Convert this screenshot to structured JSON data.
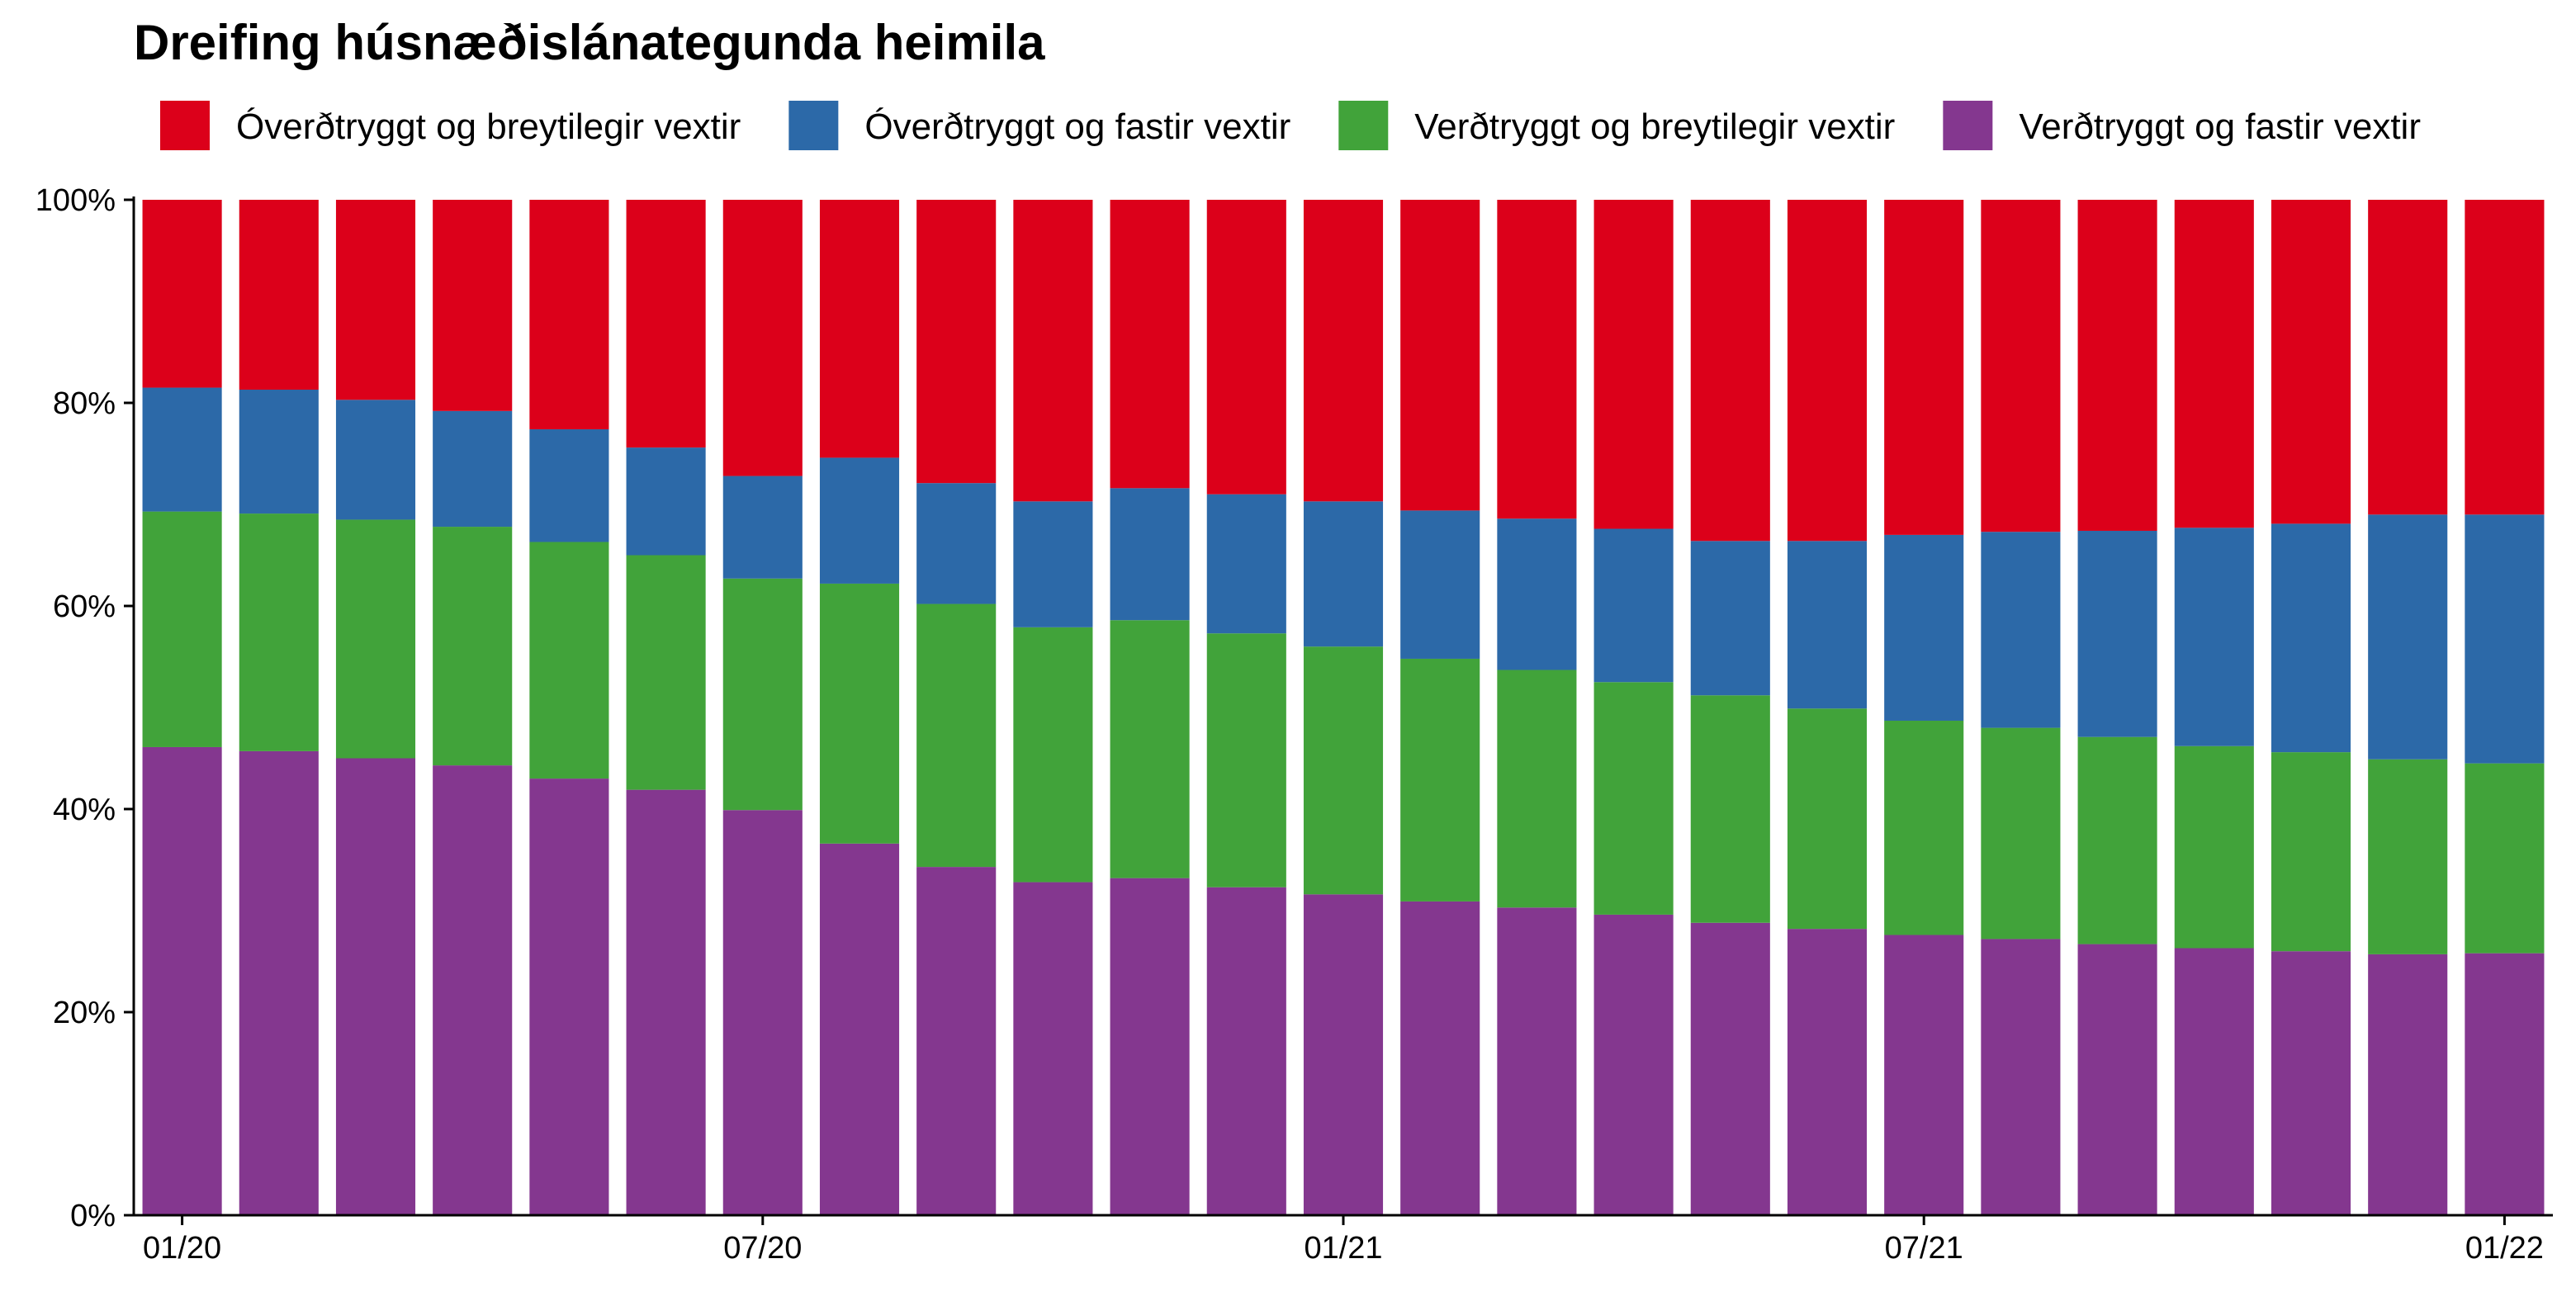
{
  "chart_data": {
    "type": "bar",
    "stacked": true,
    "title": "Dreifing húsnæðislánategunda heimila",
    "xlabel": "",
    "ylabel": "",
    "ylim": [
      0,
      1
    ],
    "y_ticks": [
      {
        "value": 0,
        "label": "0%"
      },
      {
        "value": 0.2,
        "label": "20%"
      },
      {
        "value": 0.4,
        "label": "40%"
      },
      {
        "value": 0.6,
        "label": "60%"
      },
      {
        "value": 0.8,
        "label": "80%"
      },
      {
        "value": 1,
        "label": "100%"
      }
    ],
    "categories": [
      "2020-01",
      "2020-02",
      "2020-03",
      "2020-04",
      "2020-05",
      "2020-06",
      "2020-07",
      "2020-08",
      "2020-09",
      "2020-10",
      "2020-11",
      "2020-12",
      "2021-01",
      "2021-02",
      "2021-03",
      "2021-04",
      "2021-05",
      "2021-06",
      "2021-07",
      "2021-08",
      "2021-09",
      "2021-10",
      "2021-11",
      "2021-12",
      "2022-01"
    ],
    "x_ticks": [
      {
        "category": "2020-01",
        "label": "01/20"
      },
      {
        "category": "2020-07",
        "label": "07/20"
      },
      {
        "category": "2021-01",
        "label": "01/21"
      },
      {
        "category": "2021-07",
        "label": "07/21"
      },
      {
        "category": "2022-01",
        "label": "01/22"
      }
    ],
    "legend_position": "top",
    "series": [
      {
        "name": "Verðtryggt og fastir vextir",
        "color": "#84378F",
        "values": [
          0.461,
          0.457,
          0.45,
          0.443,
          0.43,
          0.419,
          0.399,
          0.366,
          0.343,
          0.328,
          0.332,
          0.323,
          0.316,
          0.309,
          0.303,
          0.296,
          0.288,
          0.282,
          0.276,
          0.272,
          0.267,
          0.263,
          0.26,
          0.257,
          0.258
        ]
      },
      {
        "name": "Verðtryggt og breytilegir vextir",
        "color": "#41A33A",
        "values": [
          0.232,
          0.234,
          0.235,
          0.235,
          0.233,
          0.231,
          0.228,
          0.256,
          0.259,
          0.251,
          0.254,
          0.25,
          0.244,
          0.239,
          0.234,
          0.229,
          0.224,
          0.217,
          0.211,
          0.208,
          0.204,
          0.199,
          0.196,
          0.192,
          0.187
        ]
      },
      {
        "name": "Óverðtryggt og fastir vextir",
        "color": "#2C69A8",
        "values": [
          0.122,
          0.122,
          0.118,
          0.114,
          0.111,
          0.106,
          0.101,
          0.124,
          0.119,
          0.124,
          0.13,
          0.137,
          0.143,
          0.146,
          0.149,
          0.151,
          0.152,
          0.165,
          0.183,
          0.193,
          0.203,
          0.215,
          0.225,
          0.241,
          0.245
        ]
      },
      {
        "name": "Óverðtryggt og breytilegir vextir",
        "color": "#DC001A",
        "values": [
          0.185,
          0.187,
          0.197,
          0.208,
          0.226,
          0.244,
          0.272,
          0.254,
          0.279,
          0.297,
          0.284,
          0.29,
          0.297,
          0.306,
          0.314,
          0.324,
          0.336,
          0.336,
          0.33,
          0.327,
          0.326,
          0.323,
          0.319,
          0.31,
          0.31
        ]
      }
    ],
    "legend_order": [
      "Óverðtryggt og breytilegir vextir",
      "Óverðtryggt og fastir vextir",
      "Verðtryggt og breytilegir vextir",
      "Verðtryggt og fastir vextir"
    ]
  }
}
